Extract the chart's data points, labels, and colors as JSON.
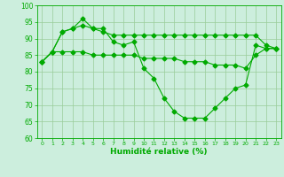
{
  "xlabel": "Humidité relative (%)",
  "bg_color": "#cceedd",
  "grid_color": "#99cc99",
  "line_color": "#00aa00",
  "xlim": [
    -0.5,
    23.5
  ],
  "ylim": [
    60,
    100
  ],
  "yticks": [
    60,
    65,
    70,
    75,
    80,
    85,
    90,
    95,
    100
  ],
  "xticks": [
    0,
    1,
    2,
    3,
    4,
    5,
    6,
    7,
    8,
    9,
    10,
    11,
    12,
    13,
    14,
    15,
    16,
    17,
    18,
    19,
    20,
    21,
    22,
    23
  ],
  "series1": [
    83,
    86,
    92,
    93,
    96,
    93,
    93,
    89,
    88,
    89,
    81,
    78,
    72,
    68,
    66,
    66,
    66,
    69,
    72,
    75,
    76,
    88,
    87,
    87
  ],
  "series2": [
    83,
    86,
    92,
    93,
    94,
    93,
    92,
    91,
    91,
    91,
    91,
    91,
    91,
    91,
    91,
    91,
    91,
    91,
    91,
    91,
    91,
    91,
    88,
    87
  ],
  "series3": [
    83,
    86,
    86,
    86,
    86,
    85,
    85,
    85,
    85,
    85,
    84,
    84,
    84,
    84,
    83,
    83,
    83,
    82,
    82,
    82,
    81,
    85,
    87,
    87
  ]
}
